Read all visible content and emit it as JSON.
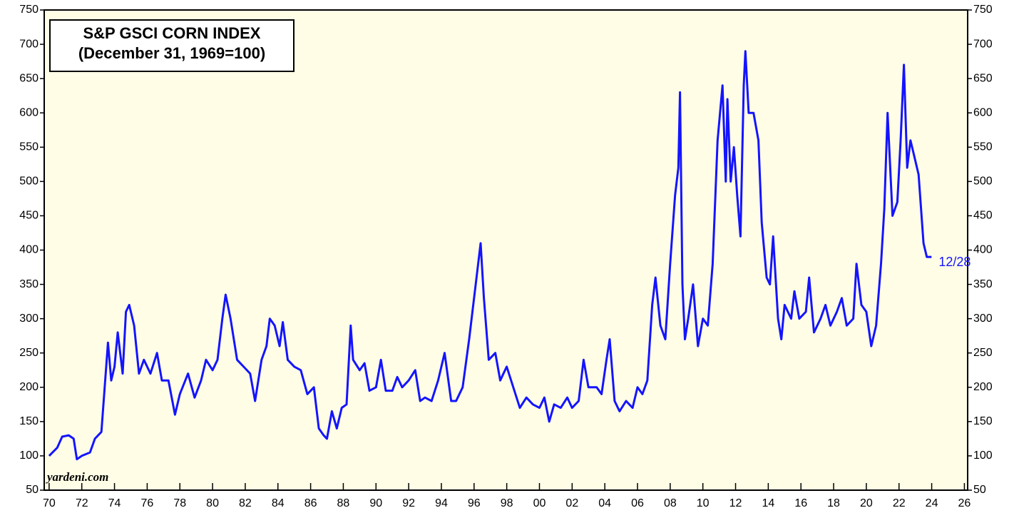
{
  "chart_data": {
    "type": "line",
    "title": "S&P GSCI CORN INDEX",
    "subtitle": "(December 31, 1969=100)",
    "annotations": [
      "yardeni.com"
    ],
    "end_label": "12/28",
    "xlim": [
      1969.7,
      2026.2
    ],
    "ylim": [
      50,
      750
    ],
    "yticks": [
      50,
      100,
      150,
      200,
      250,
      300,
      350,
      400,
      450,
      500,
      550,
      600,
      650,
      700,
      750
    ],
    "xticks": [
      {
        "value": 1970,
        "label": "70"
      },
      {
        "value": 1972,
        "label": "72"
      },
      {
        "value": 1974,
        "label": "74"
      },
      {
        "value": 1976,
        "label": "76"
      },
      {
        "value": 1978,
        "label": "78"
      },
      {
        "value": 1980,
        "label": "80"
      },
      {
        "value": 1982,
        "label": "82"
      },
      {
        "value": 1984,
        "label": "84"
      },
      {
        "value": 1986,
        "label": "86"
      },
      {
        "value": 1988,
        "label": "88"
      },
      {
        "value": 1990,
        "label": "90"
      },
      {
        "value": 1992,
        "label": "92"
      },
      {
        "value": 1994,
        "label": "94"
      },
      {
        "value": 1996,
        "label": "96"
      },
      {
        "value": 1998,
        "label": "98"
      },
      {
        "value": 2000,
        "label": "00"
      },
      {
        "value": 2002,
        "label": "02"
      },
      {
        "value": 2004,
        "label": "04"
      },
      {
        "value": 2006,
        "label": "06"
      },
      {
        "value": 2008,
        "label": "08"
      },
      {
        "value": 2010,
        "label": "10"
      },
      {
        "value": 2012,
        "label": "12"
      },
      {
        "value": 2014,
        "label": "14"
      },
      {
        "value": 2016,
        "label": "16"
      },
      {
        "value": 2018,
        "label": "18"
      },
      {
        "value": 2020,
        "label": "20"
      },
      {
        "value": 2022,
        "label": "22"
      },
      {
        "value": 2024,
        "label": "24"
      },
      {
        "value": 2026,
        "label": "26"
      }
    ],
    "series": [
      {
        "color": "#1414ff",
        "x": [
          1970.0,
          1970.5,
          1970.8,
          1971.2,
          1971.5,
          1971.7,
          1972.0,
          1972.5,
          1972.8,
          1973.2,
          1973.4,
          1973.6,
          1973.8,
          1974.0,
          1974.2,
          1974.5,
          1974.7,
          1974.9,
          1975.2,
          1975.5,
          1975.8,
          1976.2,
          1976.6,
          1976.9,
          1977.3,
          1977.7,
          1978.0,
          1978.5,
          1978.9,
          1979.3,
          1979.6,
          1980.0,
          1980.3,
          1980.6,
          1980.8,
          1981.1,
          1981.5,
          1981.9,
          1982.3,
          1982.6,
          1983.0,
          1983.3,
          1983.5,
          1983.8,
          1984.1,
          1984.3,
          1984.6,
          1985.0,
          1985.4,
          1985.8,
          1986.2,
          1986.5,
          1986.8,
          1987.0,
          1987.3,
          1987.6,
          1987.9,
          1988.2,
          1988.45,
          1988.6,
          1989.0,
          1989.3,
          1989.6,
          1990.0,
          1990.3,
          1990.6,
          1991.0,
          1991.3,
          1991.6,
          1992.0,
          1992.4,
          1992.7,
          1993.0,
          1993.4,
          1993.8,
          1994.2,
          1994.6,
          1994.9,
          1995.3,
          1995.7,
          1996.0,
          1996.4,
          1996.6,
          1996.9,
          1997.3,
          1997.6,
          1998.0,
          1998.4,
          1998.8,
          1999.2,
          1999.6,
          2000.0,
          2000.3,
          2000.6,
          2000.9,
          2001.3,
          2001.7,
          2002.0,
          2002.4,
          2002.7,
          2003.0,
          2003.5,
          2003.8,
          2004.1,
          2004.3,
          2004.6,
          2004.9,
          2005.3,
          2005.7,
          2006.0,
          2006.3,
          2006.6,
          2006.9,
          2007.1,
          2007.4,
          2007.7,
          2008.0,
          2008.3,
          2008.5,
          2008.6,
          2008.75,
          2008.9,
          2009.1,
          2009.4,
          2009.7,
          2010.0,
          2010.3,
          2010.6,
          2010.9,
          2011.2,
          2011.4,
          2011.5,
          2011.7,
          2011.9,
          2012.1,
          2012.3,
          2012.5,
          2012.6,
          2012.8,
          2013.1,
          2013.4,
          2013.6,
          2013.9,
          2014.1,
          2014.3,
          2014.6,
          2014.8,
          2015.0,
          2015.4,
          2015.6,
          2015.9,
          2016.3,
          2016.5,
          2016.8,
          2017.2,
          2017.5,
          2017.8,
          2018.2,
          2018.5,
          2018.8,
          2019.2,
          2019.4,
          2019.7,
          2020.0,
          2020.3,
          2020.6,
          2020.9,
          2021.1,
          2021.3,
          2021.6,
          2021.9,
          2022.1,
          2022.3,
          2022.5,
          2022.7,
          2022.9,
          2023.2,
          2023.5,
          2023.7,
          2023.99
        ],
        "values": [
          100,
          112,
          128,
          130,
          125,
          95,
          100,
          105,
          125,
          135,
          200,
          265,
          210,
          230,
          280,
          220,
          310,
          320,
          290,
          220,
          240,
          220,
          250,
          210,
          210,
          160,
          190,
          220,
          185,
          210,
          240,
          225,
          240,
          300,
          335,
          300,
          240,
          230,
          220,
          180,
          240,
          260,
          300,
          290,
          260,
          295,
          240,
          230,
          225,
          190,
          200,
          140,
          130,
          125,
          165,
          140,
          170,
          175,
          290,
          240,
          225,
          235,
          195,
          200,
          240,
          195,
          195,
          215,
          200,
          210,
          225,
          180,
          185,
          180,
          210,
          250,
          180,
          180,
          200,
          270,
          330,
          410,
          330,
          240,
          250,
          210,
          230,
          200,
          170,
          185,
          175,
          170,
          185,
          150,
          175,
          170,
          185,
          170,
          180,
          240,
          200,
          200,
          190,
          240,
          270,
          180,
          165,
          180,
          170,
          200,
          190,
          210,
          320,
          360,
          290,
          270,
          380,
          480,
          520,
          630,
          350,
          270,
          300,
          350,
          260,
          300,
          290,
          380,
          560,
          640,
          500,
          620,
          500,
          550,
          480,
          420,
          640,
          690,
          600,
          600,
          560,
          440,
          360,
          350,
          420,
          300,
          270,
          320,
          300,
          340,
          300,
          310,
          360,
          280,
          300,
          320,
          290,
          310,
          330,
          290,
          300,
          380,
          320,
          310,
          260,
          290,
          380,
          460,
          600,
          450,
          470,
          560,
          670,
          520,
          560,
          540,
          510,
          410,
          390,
          390
        ]
      }
    ]
  }
}
